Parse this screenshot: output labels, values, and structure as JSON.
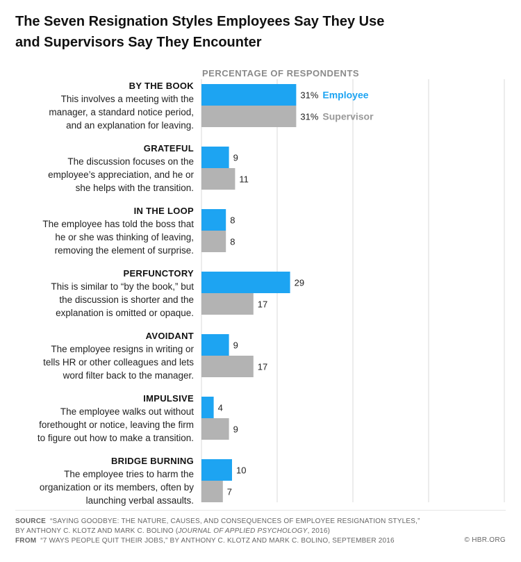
{
  "title": {
    "line1": "The Seven Resignation Styles Employees Say They Use",
    "line2": "and Supervisors Say They Encounter"
  },
  "colors": {
    "employee": "#1da4f2",
    "supervisor": "#b3b3b3",
    "grid": "#d9d9d9"
  },
  "chart_data": {
    "type": "bar",
    "orientation": "horizontal",
    "xlabel": "PERCENTAGE OF RESPONDENTS",
    "xlim": [
      0,
      35
    ],
    "grid": true,
    "categories": [
      "BY THE BOOK",
      "GRATEFUL",
      "IN THE LOOP",
      "PERFUNCTORY",
      "AVOIDANT",
      "IMPULSIVE",
      "BRIDGE BURNING"
    ],
    "descriptions": [
      [
        "This involves a meeting with the",
        "manager, a standard notice period,",
        "and an explanation for leaving."
      ],
      [
        "The discussion focuses on the",
        "employee’s appreciation, and he or",
        "she helps with the transition."
      ],
      [
        "The employee has told the boss that",
        "he or she was thinking of leaving,",
        "removing the element of surprise."
      ],
      [
        "This is similar to “by the book,” but",
        "the discussion is shorter and the",
        "explanation is omitted or opaque."
      ],
      [
        "The employee resigns in writing or",
        "tells HR or other colleagues and lets",
        "word filter back to the manager."
      ],
      [
        "The employee walks out without",
        "forethought or notice, leaving the firm",
        "to figure out how to make a transition."
      ],
      [
        "The employee tries to harm the",
        "organization or its members, often by",
        "launching verbal assaults."
      ]
    ],
    "series": [
      {
        "name": "Employee",
        "values": [
          31,
          9,
          8,
          29,
          9,
          4,
          10
        ],
        "labels": [
          "31%",
          "9",
          "8",
          "29",
          "9",
          "4",
          "10"
        ]
      },
      {
        "name": "Supervisor",
        "values": [
          31,
          11,
          8,
          17,
          17,
          9,
          7
        ],
        "labels": [
          "31%",
          "11",
          "8",
          "17",
          "17",
          "9",
          "7"
        ]
      }
    ],
    "legend": "inline on first category"
  },
  "footer": {
    "source_label": "SOURCE",
    "source_text_1": "“SAYING GOODBYE: THE NATURE, CAUSES, AND CONSEQUENCES OF EMPLOYEE RESIGNATION STYLES,”",
    "source_text_2a": "BY ANTHONY C. KLOTZ AND MARK C. BOLINO (",
    "source_journal": "JOURNAL OF APPLIED PSYCHOLOGY",
    "source_text_2b": ", 2016)",
    "from_label": "FROM",
    "from_text": "“7 WAYS PEOPLE QUIT THEIR JOBS,” BY ANTHONY C. KLOTZ AND MARK C. BOLINO, SEPTEMBER 2016",
    "credit": "© HBR.ORG"
  }
}
